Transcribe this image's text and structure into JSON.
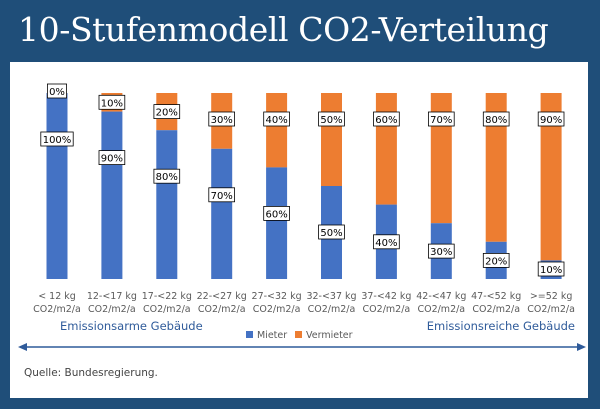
{
  "title": "10-Stufenmodell CO2-Verteilung",
  "source": "Quelle: Bundesregierung.",
  "colors": {
    "mieter": "#4472c4",
    "vermieter": "#ed7d31",
    "background": "#1f4e79",
    "region_text": "#2f5b9a"
  },
  "chart_data": {
    "type": "bar",
    "stacked": true,
    "categories": [
      [
        "< 12 kg",
        "CO2/m2/a"
      ],
      [
        "12-<17 kg",
        "CO2/m2/a"
      ],
      [
        "17-<22 kg",
        "CO2/m2/a"
      ],
      [
        "22-<27 kg",
        "CO2/m2/a"
      ],
      [
        "27-<32 kg",
        "CO2/m2/a"
      ],
      [
        "32-<37 kg",
        "CO2/m2/a"
      ],
      [
        "37-<42 kg",
        "CO2/m2/a"
      ],
      [
        "42-<47 kg",
        "CO2/m2/a"
      ],
      [
        "47-<52 kg",
        "CO2/m2/a"
      ],
      [
        ">=52 kg",
        "CO2/m2/a"
      ]
    ],
    "series": [
      {
        "name": "Mieter",
        "values": [
          100,
          90,
          80,
          70,
          60,
          50,
          40,
          30,
          20,
          10
        ],
        "labels": [
          "100%",
          "90%",
          "80%",
          "70%",
          "60%",
          "50%",
          "40%",
          "30%",
          "20%",
          "10%"
        ]
      },
      {
        "name": "Vermieter",
        "values": [
          0,
          10,
          20,
          30,
          40,
          50,
          60,
          70,
          80,
          90
        ],
        "labels": [
          "0%",
          "10%",
          "20%",
          "30%",
          "40%",
          "50%",
          "60%",
          "70%",
          "80%",
          "90%"
        ]
      }
    ],
    "ylim": [
      0,
      100
    ],
    "legend": "bottom-center",
    "annotations": {
      "left": "Emissionsarme Gebäude",
      "right": "Emissionsreiche Gebäude"
    }
  }
}
